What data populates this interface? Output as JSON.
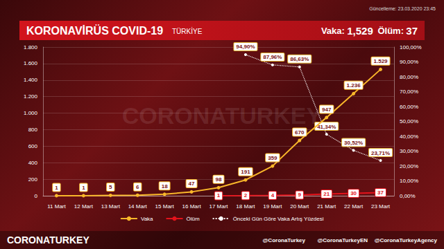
{
  "chart_data": {
    "type": "line",
    "title": "KORONAVİRÜS COVID-19",
    "subtitle": "TÜRKİYE",
    "updated": "Güncelleme: 23.03.2020 23:45",
    "summary": [
      {
        "label": "Vaka:",
        "value": "1,529"
      },
      {
        "label": "Ölüm:",
        "value": "37"
      }
    ],
    "watermark": "CORONATURKEY",
    "footer": {
      "brand": "CORONATURKEY",
      "handles": [
        "@CoronaTurkey",
        "@CoronaTurkeyEN",
        "@CoronaTurkeyAgency"
      ]
    },
    "categories": [
      "11 Mart",
      "12 Mart",
      "13 Mart",
      "14 Mart",
      "15 Mart",
      "16 Mart",
      "17 Mart",
      "18 Mart",
      "19 Mart",
      "20 Mart",
      "21 Mart",
      "22 Mart",
      "23 Mart"
    ],
    "series": [
      {
        "name": "Vaka",
        "color": "#f9b72a",
        "marker": "circle",
        "line_style": "solid",
        "values": [
          1,
          1,
          5,
          6,
          18,
          47,
          98,
          191,
          359,
          670,
          947,
          1236,
          1529
        ],
        "value_labels": [
          "1",
          "1",
          "5",
          "6",
          "18",
          "47",
          "98",
          "191",
          "359",
          "670",
          "947",
          "1.236",
          "1.529"
        ]
      },
      {
        "name": "Ölüm",
        "color": "#e3131b",
        "marker": "circle",
        "line_style": "solid",
        "values": [
          null,
          null,
          null,
          null,
          null,
          null,
          1,
          2,
          4,
          9,
          21,
          30,
          37
        ]
      },
      {
        "name": "Önceki Gün Göre Vaka Artış Yüzdesi",
        "color": "#ffffff",
        "marker": "circle",
        "line_style": "dotted",
        "axis": "y2",
        "values": [
          null,
          null,
          null,
          null,
          null,
          null,
          null,
          94.9,
          87.96,
          86.63,
          41.34,
          30.52,
          23.71
        ],
        "value_labels": [
          null,
          null,
          null,
          null,
          null,
          null,
          null,
          "94,90%",
          "87,96%",
          "86,63%",
          "41,34%",
          "30,52%",
          "23,71%"
        ]
      }
    ],
    "ylim": [
      0,
      1800
    ],
    "yticks": [
      0,
      200,
      400,
      600,
      800,
      {
        "value": 1000,
        "label": "1.000"
      },
      {
        "value": 1200,
        "label": "1.200"
      },
      {
        "value": 1400,
        "label": "1.400"
      },
      {
        "value": 1600,
        "label": "1.600"
      },
      {
        "value": 1800,
        "label": "1.800"
      }
    ],
    "y2lim": [
      0,
      100
    ],
    "y2ticks": [
      {
        "value": 0,
        "label": "0,00%"
      },
      {
        "value": 10,
        "label": "10,00%"
      },
      {
        "value": 20,
        "label": "20,00%"
      },
      {
        "value": 30,
        "label": "30,00%"
      },
      {
        "value": 40,
        "label": "40,00%"
      },
      {
        "value": 50,
        "label": "50,00%"
      },
      {
        "value": 60,
        "label": "60,00%"
      },
      {
        "value": 70,
        "label": "70,00%"
      },
      {
        "value": 80,
        "label": "80,00%"
      },
      {
        "value": 90,
        "label": "90,00%"
      },
      {
        "value": 100,
        "label": "100,00%"
      }
    ],
    "grid": true,
    "legend": "bottom",
    "data_labels": true
  }
}
